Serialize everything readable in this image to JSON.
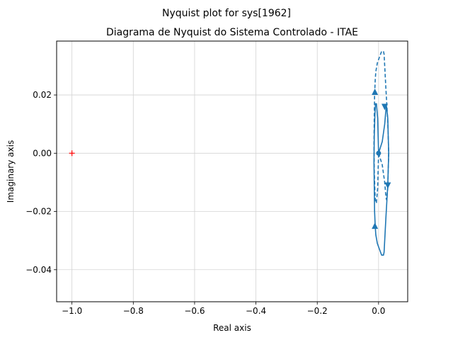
{
  "chart_data": {
    "type": "line",
    "suptitle": "Nyquist plot for sys[1962]",
    "title": "Diagrama de Nyquist do Sistema Controlado - ITAE",
    "xlabel": "Real axis",
    "ylabel": "Imaginary axis",
    "xlim": [
      -1.05,
      0.095
    ],
    "ylim": [
      -0.051,
      0.0385
    ],
    "grid": true,
    "xticks": [
      -1.0,
      -0.8,
      -0.6,
      -0.4,
      -0.2,
      0.0
    ],
    "xtick_labels": [
      "−1.0",
      "−0.8",
      "−0.6",
      "−0.4",
      "−0.2",
      "0.0"
    ],
    "yticks": [
      -0.04,
      -0.02,
      0.0,
      0.02
    ],
    "ytick_labels": [
      "−0.04",
      "−0.02",
      "0.00",
      "0.02"
    ],
    "line_color": "#1f77b4",
    "critical_point_color": "#ff0000",
    "critical_point": {
      "x": -1.0,
      "y": 0.0
    },
    "series": [
      {
        "style": "solid",
        "x": [
          0.0,
          0.012,
          0.02,
          0.024,
          0.026,
          0.03,
          0.033,
          0.03,
          0.024,
          0.018,
          0.016,
          0.014,
          0.01,
          0.003,
          -0.004,
          -0.009,
          -0.011,
          -0.013,
          -0.014,
          -0.015,
          -0.014,
          -0.012,
          -0.01,
          -0.007,
          -0.003,
          0.0
        ],
        "y": [
          0.0,
          0.004,
          0.01,
          0.015,
          0.016,
          0.012,
          0.0,
          -0.011,
          -0.022,
          -0.034,
          -0.035,
          -0.035,
          -0.035,
          -0.033,
          -0.031,
          -0.028,
          -0.025,
          -0.02,
          -0.012,
          -0.003,
          0.006,
          0.013,
          0.017,
          0.017,
          0.012,
          0.0
        ]
      },
      {
        "style": "dashed",
        "x": [
          0.0,
          0.012,
          0.02,
          0.024,
          0.026,
          0.03,
          0.033,
          0.03,
          0.024,
          0.018,
          0.016,
          0.014,
          0.01,
          0.003,
          -0.004,
          -0.009,
          -0.011,
          -0.013,
          -0.014,
          -0.015,
          -0.014,
          -0.012,
          -0.01,
          -0.007,
          -0.003,
          0.0
        ],
        "y": [
          0.0,
          -0.004,
          -0.01,
          -0.015,
          -0.016,
          -0.012,
          0.0,
          0.011,
          0.022,
          0.034,
          0.035,
          0.035,
          0.035,
          0.033,
          0.031,
          0.028,
          0.025,
          0.02,
          0.012,
          0.003,
          -0.006,
          -0.013,
          -0.017,
          -0.017,
          -0.012,
          0.0
        ]
      }
    ],
    "arrows": [
      {
        "x": -0.012,
        "y": -0.025,
        "dir": "up"
      },
      {
        "x": 0.03,
        "y": -0.011,
        "dir": "down"
      },
      {
        "x": 0.02,
        "y": 0.016,
        "dir": "down"
      },
      {
        "x": -0.012,
        "y": 0.021,
        "dir": "up"
      }
    ],
    "markers": [
      {
        "x": 0.0,
        "y": 0.0
      }
    ]
  }
}
